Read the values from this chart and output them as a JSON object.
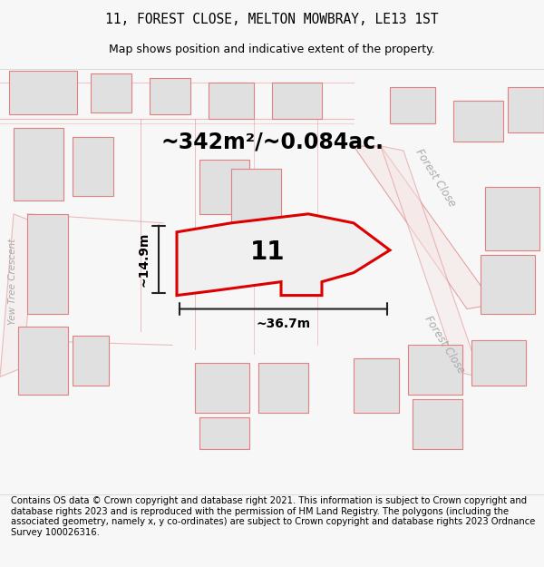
{
  "title": "11, FOREST CLOSE, MELTON MOWBRAY, LE13 1ST",
  "subtitle": "Map shows position and indicative extent of the property.",
  "area_text": "~342m²/~0.084ac.",
  "width_label": "~36.7m",
  "height_label": "~14.9m",
  "property_number": "11",
  "footer": "Contains OS data © Crown copyright and database right 2021. This information is subject to Crown copyright and database rights 2023 and is reproduced with the permission of HM Land Registry. The polygons (including the associated geometry, namely x, y co-ordinates) are subject to Crown copyright and database rights 2023 Ordnance Survey 100026316.",
  "bg_color": "#f7f7f7",
  "map_bg": "#ffffff",
  "property_fill": "#f0f0f0",
  "property_edge": "#dd0000",
  "nearby_fill": "#e0e0e0",
  "nearby_edge": "#e08080",
  "road_color": "#e08080",
  "road_label_color": "#aaaaaa",
  "dim_line_color": "#222222",
  "title_fontsize": 10.5,
  "subtitle_fontsize": 9,
  "area_fontsize": 17,
  "label_fontsize": 10,
  "number_fontsize": 20,
  "footer_fontsize": 7.2
}
